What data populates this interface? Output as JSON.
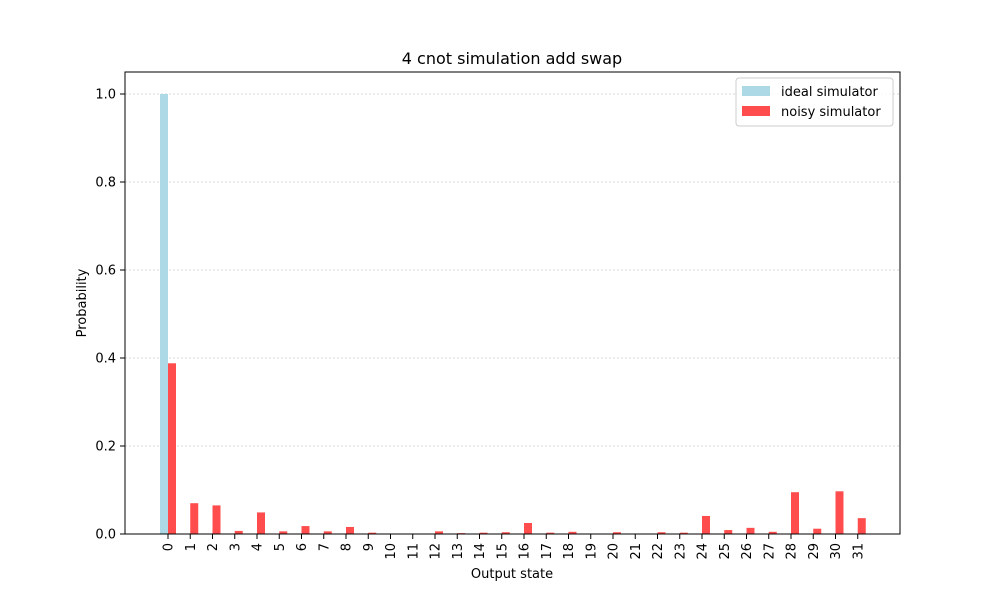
{
  "chart_data": {
    "type": "bar",
    "title": "4 cnot simulation add swap",
    "xlabel": "Output state",
    "ylabel": "Probability",
    "categories": [
      "0",
      "1",
      "2",
      "3",
      "4",
      "5",
      "6",
      "7",
      "8",
      "9",
      "10",
      "11",
      "12",
      "13",
      "14",
      "15",
      "16",
      "17",
      "18",
      "19",
      "20",
      "21",
      "22",
      "23",
      "24",
      "25",
      "26",
      "27",
      "28",
      "29",
      "30",
      "31"
    ],
    "series": [
      {
        "name": "ideal simulator",
        "color": "#add8e6",
        "values": [
          1.0,
          0,
          0,
          0,
          0,
          0,
          0,
          0,
          0,
          0,
          0,
          0,
          0,
          0,
          0,
          0,
          0,
          0,
          0,
          0,
          0,
          0,
          0,
          0,
          0,
          0,
          0,
          0,
          0,
          0,
          0,
          0
        ]
      },
      {
        "name": "noisy simulator",
        "color": "#ff4c4c",
        "values": [
          0.388,
          0.07,
          0.065,
          0.007,
          0.049,
          0.006,
          0.018,
          0.006,
          0.016,
          0.003,
          0.001,
          0.001,
          0.006,
          0.002,
          0.003,
          0.004,
          0.025,
          0.003,
          0.005,
          0.001,
          0.004,
          0.001,
          0.004,
          0.003,
          0.041,
          0.009,
          0.014,
          0.005,
          0.095,
          0.012,
          0.097,
          0.036
        ]
      }
    ],
    "ylim": [
      0,
      1.05
    ],
    "yticks": [
      "0.0",
      "0.2",
      "0.4",
      "0.6",
      "0.8",
      "1.0"
    ],
    "ytick_values": [
      0,
      0.2,
      0.4,
      0.6,
      0.8,
      1.0
    ],
    "grid": "y",
    "legend_position": "top-right"
  }
}
